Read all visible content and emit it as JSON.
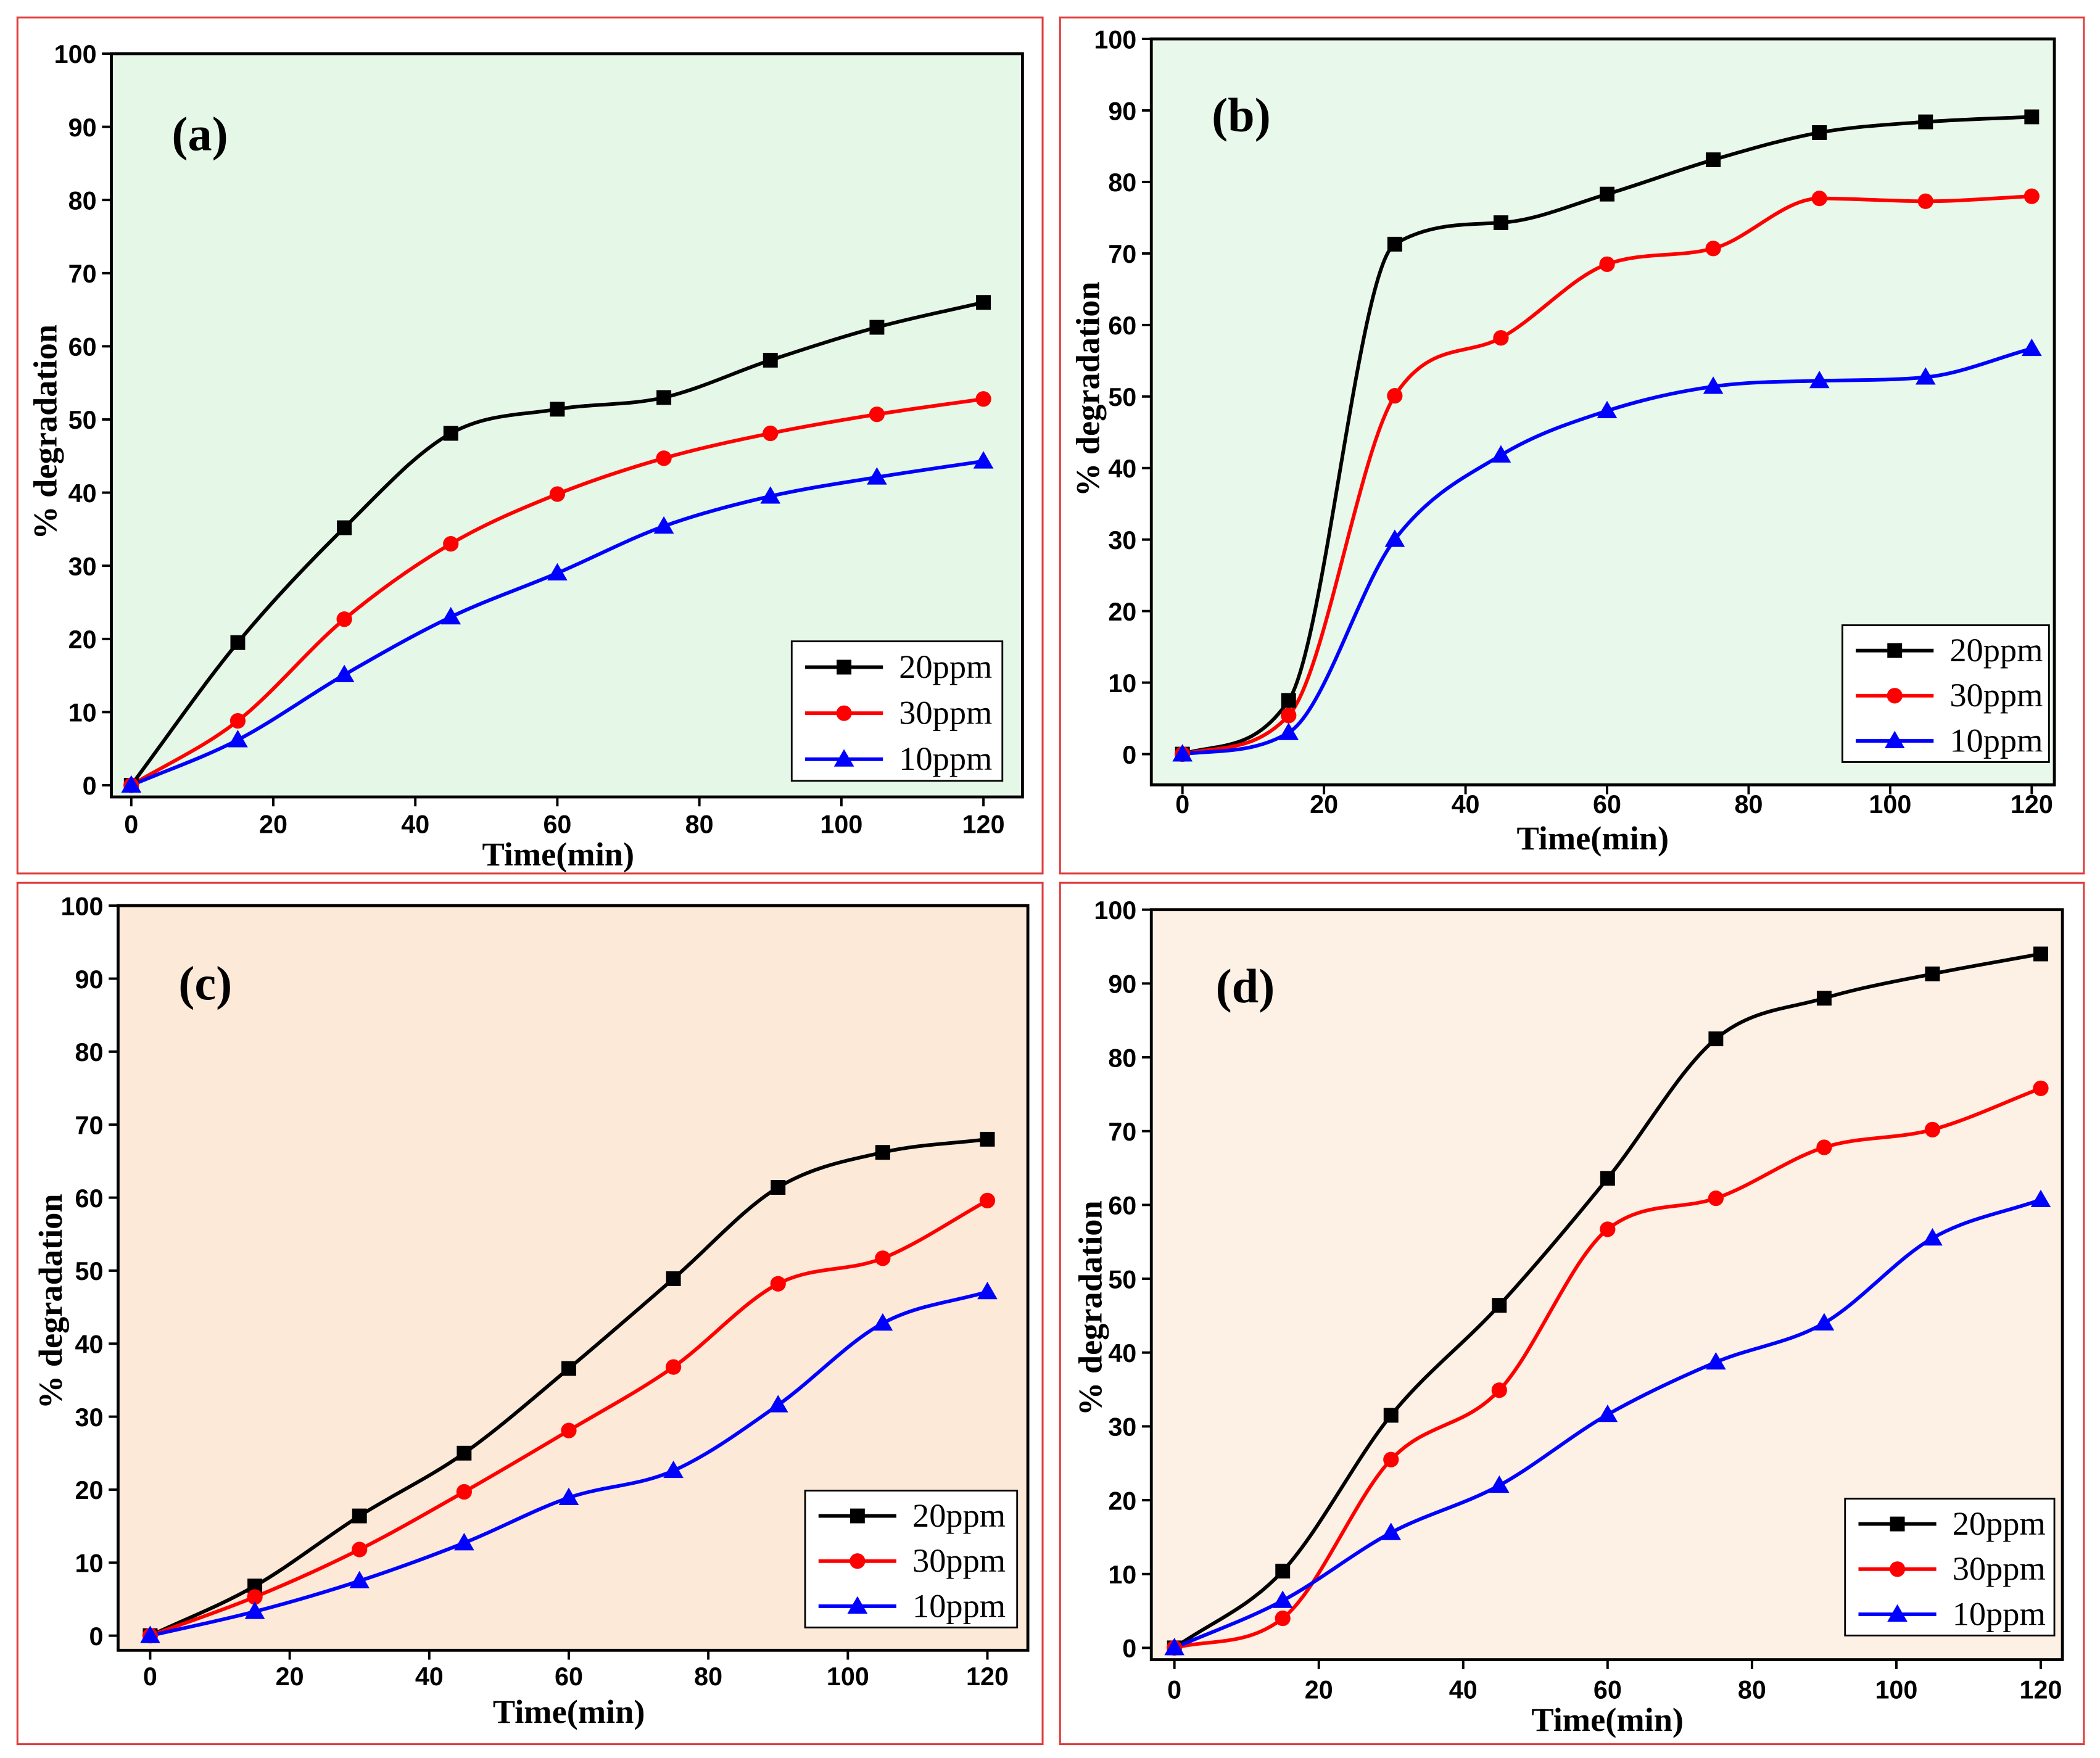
{
  "chart_data": [
    {
      "type": "line",
      "label": "(a)",
      "xlabel": "Time(min)",
      "ylabel": "% degradation",
      "x": [
        0,
        15,
        30,
        45,
        60,
        75,
        90,
        105,
        120
      ],
      "xlim": [
        -2.8,
        125.5
      ],
      "ylim": [
        -1.6,
        100
      ],
      "xticks": [
        0,
        20,
        40,
        60,
        80,
        100,
        120
      ],
      "yticks": [
        0,
        10,
        20,
        30,
        40,
        50,
        60,
        70,
        80,
        90,
        100
      ],
      "legend": "lower-right",
      "background": "#e5f7e7",
      "series": [
        {
          "name": "20ppm",
          "color": "#000000",
          "marker": "square",
          "values": [
            0,
            19.5,
            35.2,
            48.1,
            51.4,
            53.0,
            58.1,
            62.6,
            66.0
          ]
        },
        {
          "name": "30ppm",
          "color": "#ff0000",
          "marker": "circle",
          "values": [
            0,
            8.8,
            22.7,
            33.0,
            39.8,
            44.7,
            48.1,
            50.7,
            52.8
          ]
        },
        {
          "name": "10ppm",
          "color": "#0000ff",
          "marker": "triangle",
          "values": [
            0,
            6.2,
            15.1,
            23.0,
            29.0,
            35.4,
            39.5,
            42.1,
            44.3
          ]
        }
      ]
    },
    {
      "type": "line",
      "label": "(b)",
      "xlabel": "Time(min)",
      "ylabel": "% degradation",
      "x": [
        0,
        15,
        30,
        45,
        60,
        75,
        90,
        105,
        120
      ],
      "xlim": [
        -4.4,
        123.2
      ],
      "ylim": [
        -4.3,
        100
      ],
      "xticks": [
        0,
        20,
        40,
        60,
        80,
        100,
        120
      ],
      "yticks": [
        0,
        10,
        20,
        30,
        40,
        50,
        60,
        70,
        80,
        90,
        100
      ],
      "legend": "lower-right",
      "background": "#e8f8ea",
      "series": [
        {
          "name": "20ppm",
          "color": "#000000",
          "marker": "square",
          "values": [
            0,
            7.5,
            71.3,
            74.3,
            78.3,
            83.1,
            86.9,
            88.4,
            89.1
          ]
        },
        {
          "name": "30ppm",
          "color": "#ff0000",
          "marker": "circle",
          "values": [
            0,
            5.4,
            50.1,
            58.2,
            68.5,
            70.7,
            77.7,
            77.3,
            78.0
          ]
        },
        {
          "name": "10ppm",
          "color": "#0000ff",
          "marker": "triangle",
          "values": [
            0,
            3.0,
            30.0,
            41.8,
            48.0,
            51.4,
            52.2,
            52.7,
            56.7
          ]
        }
      ]
    },
    {
      "type": "line",
      "label": "(c)",
      "xlabel": "Time(min)",
      "ylabel": "% degradation",
      "x": [
        0,
        15,
        30,
        45,
        60,
        75,
        90,
        105,
        120
      ],
      "xlim": [
        -4.6,
        125.8
      ],
      "ylim": [
        -2,
        100
      ],
      "xticks": [
        0,
        20,
        40,
        60,
        80,
        100,
        120
      ],
      "yticks": [
        0,
        10,
        20,
        30,
        40,
        50,
        60,
        70,
        80,
        90,
        100
      ],
      "legend": "lower-right",
      "background": "#fce9d8",
      "series": [
        {
          "name": "20ppm",
          "color": "#000000",
          "marker": "square",
          "values": [
            0,
            6.8,
            16.4,
            25.0,
            36.6,
            48.9,
            61.4,
            66.2,
            68.0
          ]
        },
        {
          "name": "30ppm",
          "color": "#ff0000",
          "marker": "circle",
          "values": [
            0,
            5.3,
            11.8,
            19.7,
            28.1,
            36.8,
            48.2,
            51.7,
            59.6
          ]
        },
        {
          "name": "10ppm",
          "color": "#0000ff",
          "marker": "triangle",
          "values": [
            0,
            3.3,
            7.5,
            12.7,
            18.9,
            22.6,
            31.6,
            42.8,
            47.1
          ]
        }
      ]
    },
    {
      "type": "line",
      "label": "(d)",
      "xlabel": "Time(min)",
      "ylabel": "% degradation",
      "x": [
        0,
        15,
        30,
        45,
        60,
        75,
        90,
        105,
        120
      ],
      "xlim": [
        -3.2,
        123
      ],
      "ylim": [
        -1.6,
        100
      ],
      "xticks": [
        0,
        20,
        40,
        60,
        80,
        100,
        120
      ],
      "yticks": [
        0,
        10,
        20,
        30,
        40,
        50,
        60,
        70,
        80,
        90,
        100
      ],
      "legend": "lower-right",
      "background": "#fdf0e4",
      "series": [
        {
          "name": "20ppm",
          "color": "#000000",
          "marker": "square",
          "values": [
            0,
            10.4,
            31.5,
            46.4,
            63.6,
            82.5,
            88.0,
            91.3,
            94.0
          ]
        },
        {
          "name": "30ppm",
          "color": "#ff0000",
          "marker": "circle",
          "values": [
            0,
            4.0,
            25.5,
            34.9,
            56.7,
            60.9,
            67.8,
            70.2,
            75.8
          ]
        },
        {
          "name": "10ppm",
          "color": "#0000ff",
          "marker": "triangle",
          "values": [
            0,
            6.4,
            15.6,
            22.0,
            31.6,
            38.7,
            44.0,
            55.5,
            60.7
          ]
        }
      ]
    }
  ]
}
